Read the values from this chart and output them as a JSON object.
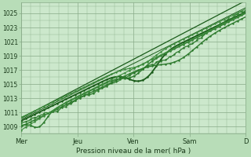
{
  "title": "",
  "xlabel": "Pression niveau de la mer( hPa )",
  "xlim": [
    0,
    5.0
  ],
  "ylim": [
    1008.0,
    1026.5
  ],
  "yticks": [
    1009,
    1011,
    1013,
    1015,
    1017,
    1019,
    1021,
    1023,
    1025
  ],
  "xtick_labels": [
    "Mer",
    "Jeu",
    "Ven",
    "Sam",
    "D"
  ],
  "xtick_pos": [
    0.0,
    1.25,
    2.5,
    3.75,
    5.0
  ],
  "outer_bg": "#b8ddb8",
  "plot_bg_color": "#cce8cc",
  "grid_minor_color": "#99bb99",
  "grid_major_color": "#88aa88",
  "line_dark": "#1a5c1a",
  "line_mid": "#2d7a2d",
  "line_light": "#3d8b3d",
  "text_color": "#1a3a1a"
}
